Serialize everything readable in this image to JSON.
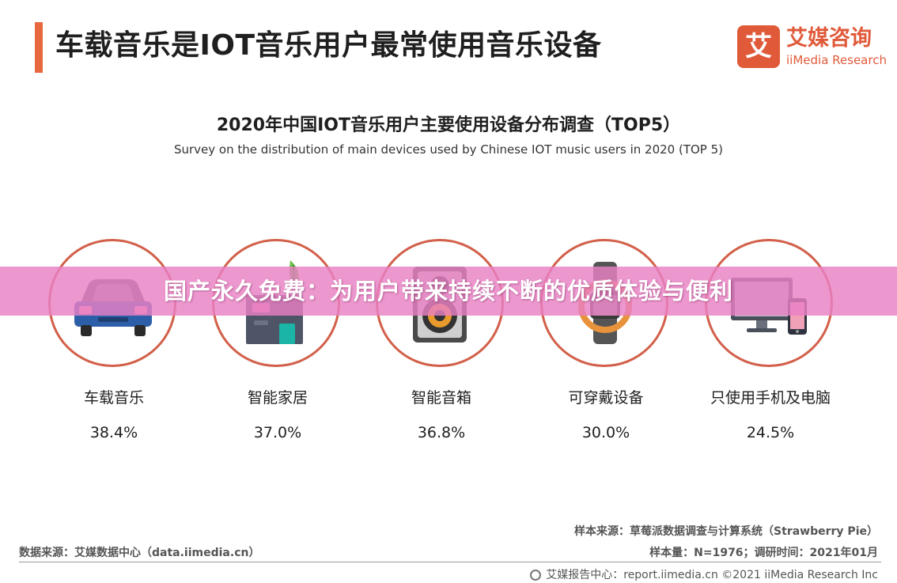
{
  "header": {
    "title": "车载音乐是IOT音乐用户最常使用音乐设备",
    "logo_mark": "艾",
    "logo_cn": "艾媒咨询",
    "logo_en": "iiMedia Research"
  },
  "chart_data": {
    "type": "table",
    "title": "2020年中国IOT音乐用户主要使用设备分布调查（TOP5）",
    "subtitle": "Survey on the distribution of main devices used by Chinese IOT music users in 2020 (TOP 5)",
    "categories": [
      "车载音乐",
      "智能家居",
      "智能音箱",
      "可穿戴设备",
      "只使用手机及电脑"
    ],
    "values": [
      38.4,
      37.0,
      36.8,
      30.0,
      24.5
    ],
    "value_labels": [
      "38.4%",
      "37.0%",
      "36.8%",
      "30.0%",
      "24.5%"
    ],
    "icons": [
      "car-icon",
      "smart-home-icon",
      "speaker-icon",
      "wearable-icon",
      "computer-phone-icon"
    ],
    "ring_color": "#d2604a"
  },
  "banner": {
    "text": "国产永久免费：为用户带来持续不断的优质体验与便利",
    "color": "#e980c4"
  },
  "sources": {
    "sample_source": "样本来源：草莓派数据调查与计算系统（Strawberry Pie）",
    "data_source": "数据来源：艾媒数据中心（data.iimedia.cn）",
    "sample_info": "样本量：N=1976；调研时间：2021年01月",
    "footer": "艾媒报告中心：report.iimedia.cn ©2021 iiMedia Research Inc"
  },
  "colors": {
    "accent": "#e8673e",
    "brand": "#e05a3a"
  }
}
